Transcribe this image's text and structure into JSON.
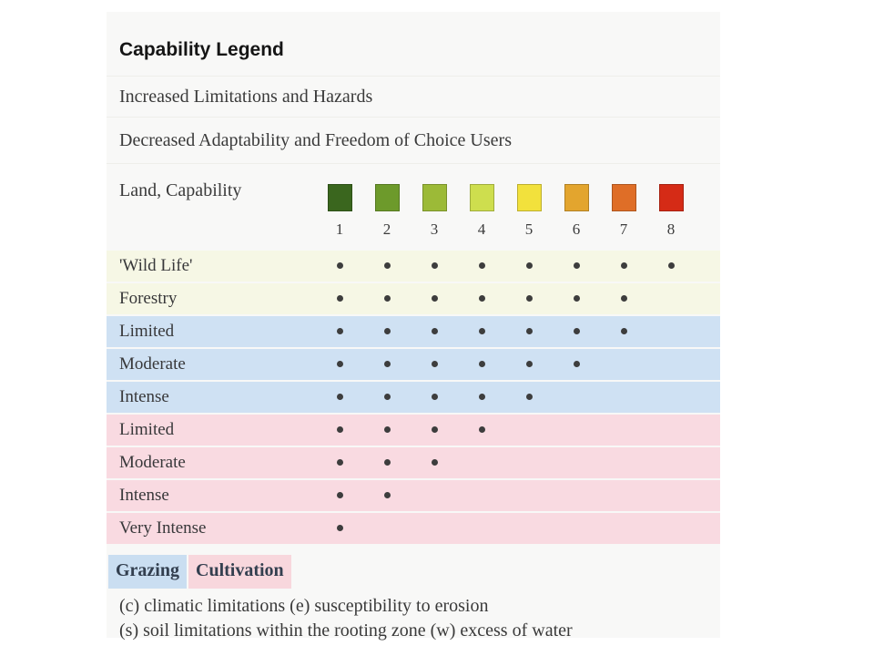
{
  "panel": {
    "title": "Capability Legend",
    "subtitle_increased": "Increased Limitations and Hazards",
    "subtitle_decreased": "Decreased Adaptability and Freedom of Choice Users",
    "scale_label": "Land, Capability"
  },
  "chart_data": {
    "type": "table",
    "title": "Capability Legend",
    "columns": [
      "1",
      "2",
      "3",
      "4",
      "5",
      "6",
      "7",
      "8"
    ],
    "class_colors": [
      "#3a661e",
      "#6d9a2b",
      "#9cba37",
      "#cede4e",
      "#f2e13c",
      "#e3a52e",
      "#df6e27",
      "#d52b16"
    ],
    "row_group_colors": {
      "none": "#f6f7e5",
      "grazing": "#cfe1f3",
      "cultivation": "#f9dae1"
    },
    "rows": [
      {
        "label": "'Wild Life'",
        "group": "none",
        "classes": [
          1,
          2,
          3,
          4,
          5,
          6,
          7,
          8
        ]
      },
      {
        "label": "Forestry",
        "group": "none",
        "classes": [
          1,
          2,
          3,
          4,
          5,
          6,
          7
        ]
      },
      {
        "label": "Limited",
        "group": "grazing",
        "classes": [
          1,
          2,
          3,
          4,
          5,
          6,
          7
        ]
      },
      {
        "label": "Moderate",
        "group": "grazing",
        "classes": [
          1,
          2,
          3,
          4,
          5,
          6
        ]
      },
      {
        "label": "Intense",
        "group": "grazing",
        "classes": [
          1,
          2,
          3,
          4,
          5
        ]
      },
      {
        "label": "Limited",
        "group": "cultivation",
        "classes": [
          1,
          2,
          3,
          4
        ]
      },
      {
        "label": "Moderate",
        "group": "cultivation",
        "classes": [
          1,
          2,
          3
        ]
      },
      {
        "label": "Intense",
        "group": "cultivation",
        "classes": [
          1,
          2
        ]
      },
      {
        "label": "Very Intense",
        "group": "cultivation",
        "classes": [
          1
        ]
      }
    ],
    "dot_color": "#3d3d3d"
  },
  "legend": {
    "grazing_label": "Grazing",
    "grazing_color": "#cadef1",
    "cultivation_label": "Cultivation",
    "cultivation_color": "#f8d7dd"
  },
  "footnotes": [
    "(c) climatic limitations (e) susceptibility to erosion",
    "(s) soil limitations within the rooting zone (w) excess of water"
  ]
}
